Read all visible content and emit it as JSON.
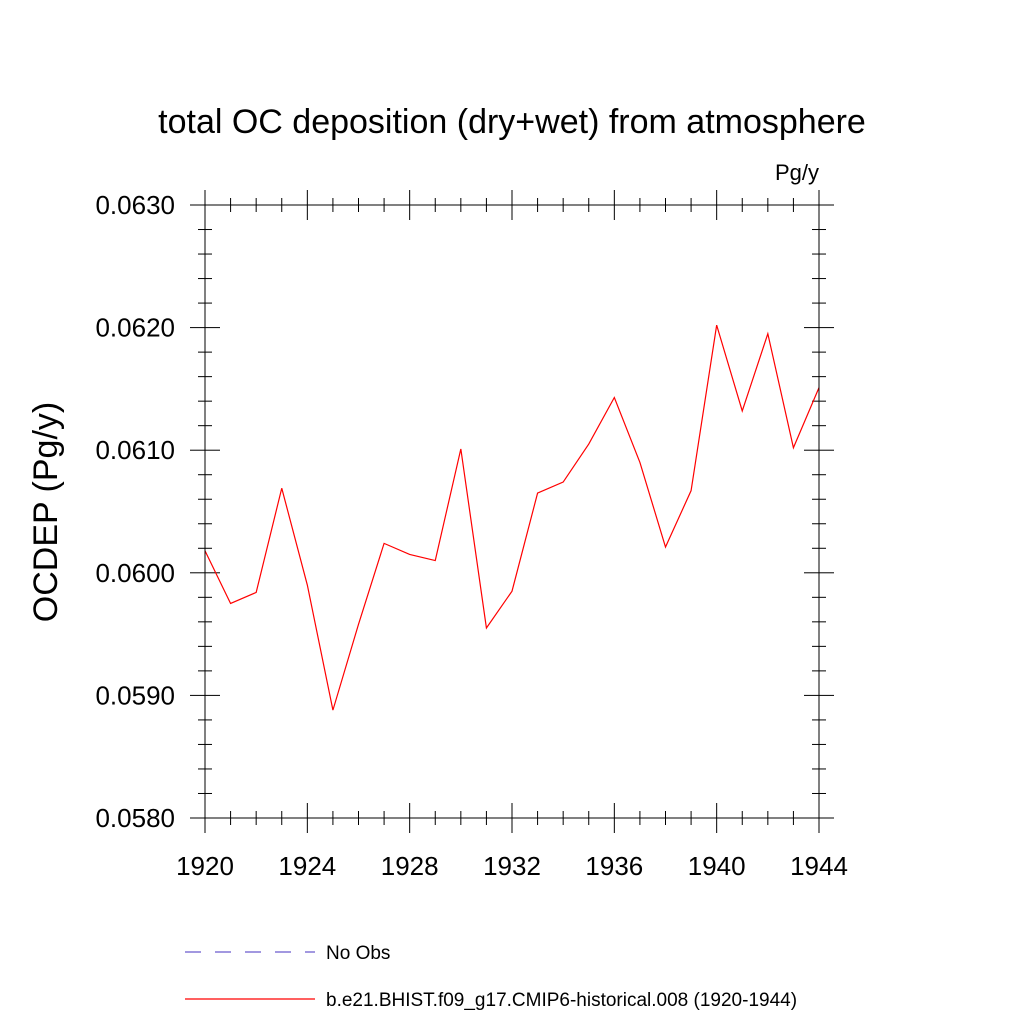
{
  "chart_data": {
    "type": "line",
    "title": "total OC deposition (dry+wet) from atmosphere",
    "units": "Pg/y",
    "xlabel": "",
    "ylabel": "OCDEP  (Pg/y)",
    "xlim": [
      1920,
      1944
    ],
    "ylim": [
      0.058,
      0.063
    ],
    "x_ticks": [
      1920,
      1924,
      1928,
      1932,
      1936,
      1940,
      1944
    ],
    "x_tick_labels": [
      "1920",
      "1924",
      "1928",
      "1932",
      "1936",
      "1940",
      "1944"
    ],
    "y_ticks": [
      0.058,
      0.059,
      0.06,
      0.061,
      0.062,
      0.063
    ],
    "y_tick_labels": [
      "0.0580",
      "0.0590",
      "0.0600",
      "0.0610",
      "0.0620",
      "0.0630"
    ],
    "grid": false,
    "legend_position": "bottom",
    "series": [
      {
        "name": "No Obs",
        "color": "#6a5acd",
        "dash": "dashed",
        "x": [],
        "y": []
      },
      {
        "name": "b.e21.BHIST.f09_g17.CMIP6-historical.008 (1920-1944)",
        "color": "#ff0000",
        "dash": "solid",
        "x": [
          1920,
          1921,
          1922,
          1923,
          1924,
          1925,
          1926,
          1927,
          1928,
          1929,
          1930,
          1931,
          1932,
          1933,
          1934,
          1935,
          1936,
          1937,
          1938,
          1939,
          1940,
          1941,
          1942,
          1943,
          1944
        ],
        "y": [
          0.06018,
          0.05975,
          0.05984,
          0.06069,
          0.0599,
          0.05888,
          0.05958,
          0.06024,
          0.06015,
          0.0601,
          0.06101,
          0.05955,
          0.05985,
          0.06065,
          0.06074,
          0.06105,
          0.06143,
          0.0609,
          0.06021,
          0.06067,
          0.06202,
          0.06132,
          0.06195,
          0.06102,
          0.06151
        ]
      }
    ]
  }
}
